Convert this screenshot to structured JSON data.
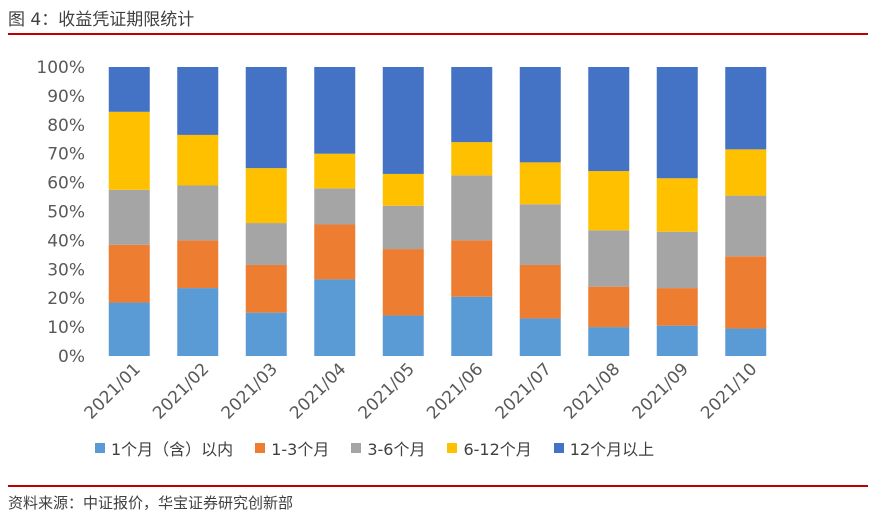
{
  "figure_title": "图 4：收益凭证期限统计",
  "source": "资料来源：中证报价，华宝证券研究创新部",
  "colors": {
    "rule": "#C00000"
  },
  "chart_data": {
    "type": "bar",
    "stacked": true,
    "percent": true,
    "categories": [
      "2021/01",
      "2021/02",
      "2021/03",
      "2021/04",
      "2021/05",
      "2021/06",
      "2021/07",
      "2021/08",
      "2021/09",
      "2021/10"
    ],
    "y_ticks": [
      "0%",
      "10%",
      "20%",
      "30%",
      "40%",
      "50%",
      "60%",
      "70%",
      "80%",
      "90%",
      "100%"
    ],
    "ylim": [
      0,
      100
    ],
    "legend_position": "bottom",
    "grid": false,
    "series": [
      {
        "name": "1个月（含）以内",
        "color": "#5B9BD5",
        "values": [
          18.5,
          23.5,
          15,
          26.5,
          14,
          20.5,
          13,
          10,
          10.5,
          9.5
        ]
      },
      {
        "name": "1-3个月",
        "color": "#ED7D31",
        "values": [
          20,
          16.5,
          16.5,
          19,
          23,
          19.5,
          18.5,
          14,
          13,
          25
        ]
      },
      {
        "name": "3-6个月",
        "color": "#A5A5A5",
        "values": [
          19,
          19,
          14.5,
          12.5,
          15,
          22.5,
          21,
          19.5,
          19.5,
          21
        ]
      },
      {
        "name": "6-12个月",
        "color": "#FFC000",
        "values": [
          27,
          17.5,
          19,
          12,
          11,
          11.5,
          14.5,
          20.5,
          18.5,
          16
        ]
      },
      {
        "name": "12个月以上",
        "color": "#4472C4",
        "values": [
          15.5,
          23.5,
          35,
          30,
          37,
          26,
          33,
          36,
          38.5,
          28.5
        ]
      }
    ]
  }
}
